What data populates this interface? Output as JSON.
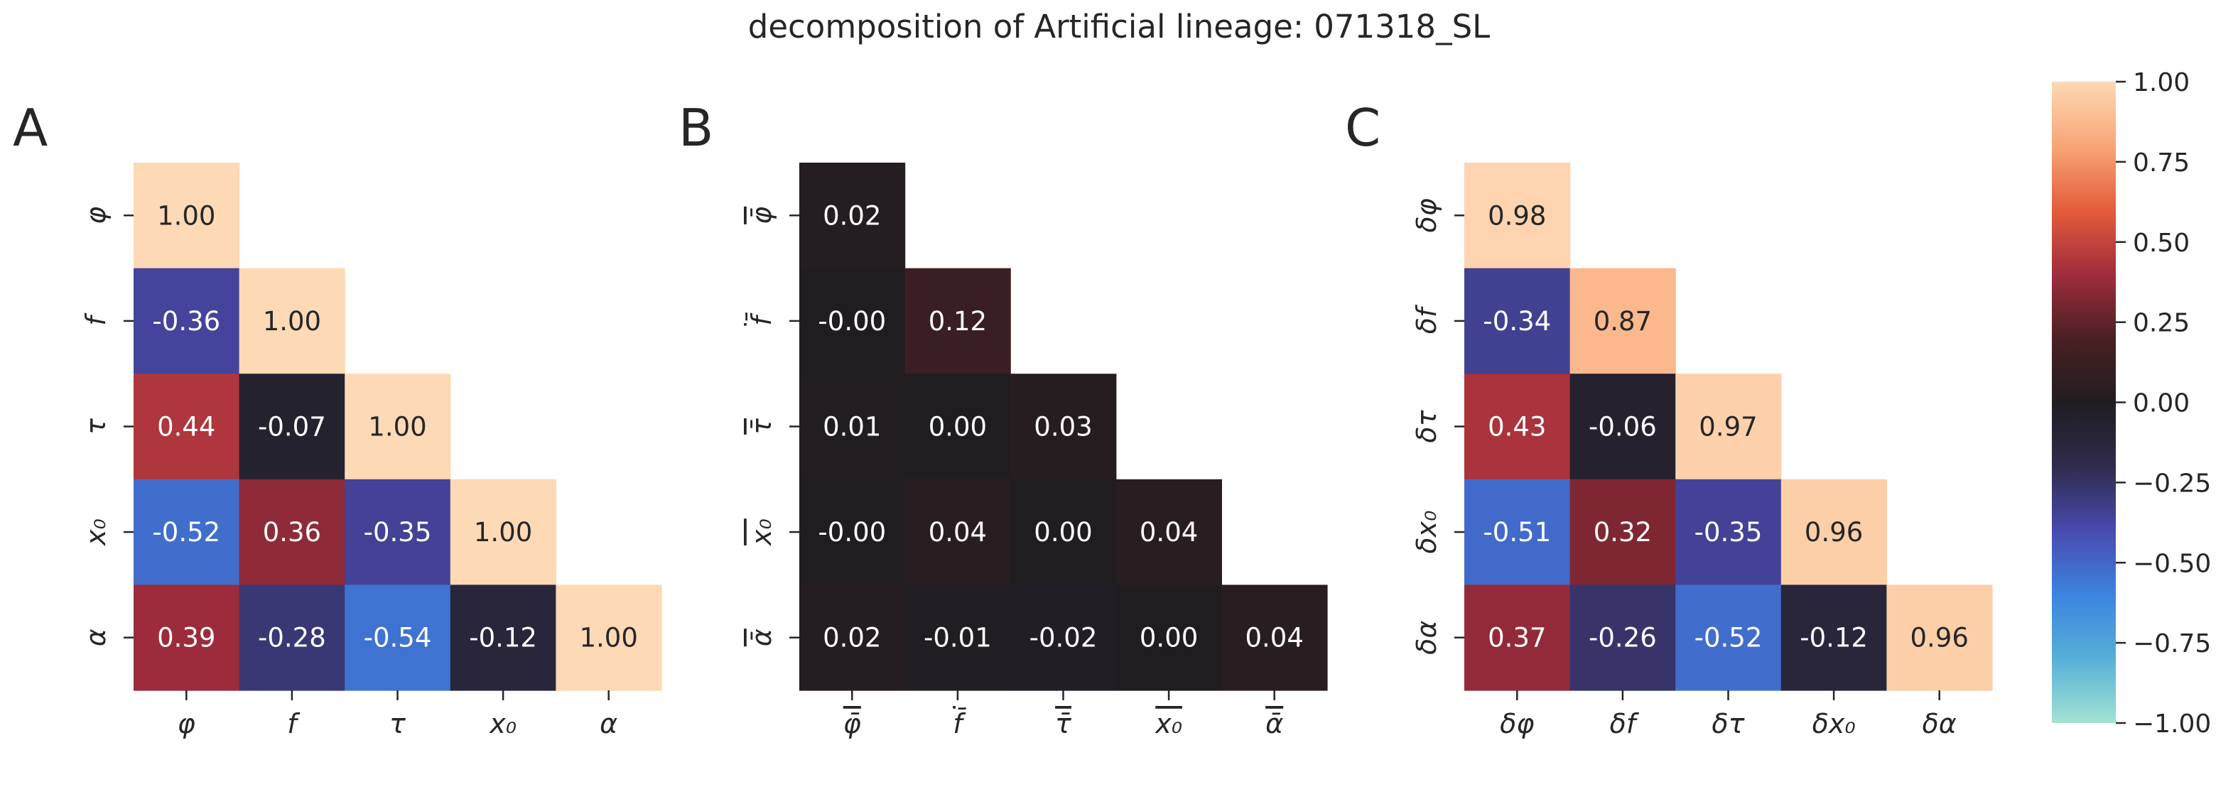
{
  "title": "decomposition of Artificial lineage: 071318_SL",
  "colors": {
    "colormap": [
      "#a3e3d2",
      "#56b0d7",
      "#3b84df",
      "#494ab0",
      "#2f2b4c",
      "#201d21",
      "#4a2023",
      "#a02c3d",
      "#e55d3a",
      "#f8a676",
      "#fdd9b5"
    ],
    "text_light": "#ffffff",
    "text_dark": "#262626"
  },
  "chart_data": [
    {
      "type": "heatmap",
      "panel": "A",
      "labels": [
        "φ",
        "f",
        "τ",
        "x0",
        "α"
      ],
      "label_display": [
        "φ",
        "f",
        "τ",
        "x₀",
        "α"
      ],
      "matrix": [
        [
          1.0,
          null,
          null,
          null,
          null
        ],
        [
          -0.36,
          1.0,
          null,
          null,
          null
        ],
        [
          0.44,
          -0.07,
          1.0,
          null,
          null
        ],
        [
          -0.52,
          0.36,
          -0.35,
          1.0,
          null
        ],
        [
          0.39,
          -0.28,
          -0.54,
          -0.12,
          1.0
        ]
      ],
      "cell_text": [
        [
          "1.00",
          "",
          "",
          "",
          ""
        ],
        [
          "-0.36",
          "1.00",
          "",
          "",
          ""
        ],
        [
          "0.44",
          "-0.07",
          "1.00",
          "",
          ""
        ],
        [
          "-0.52",
          "0.36",
          "-0.35",
          "1.00",
          ""
        ],
        [
          "0.39",
          "-0.28",
          "-0.54",
          "-0.12",
          "1.00"
        ]
      ],
      "xlabel": "",
      "ylabel": ""
    },
    {
      "type": "heatmap",
      "panel": "B",
      "labels": [
        "φ̄",
        "f̄",
        "τ̄",
        "x0 (overlined)",
        "ᾱ"
      ],
      "label_display": [
        "φ̄",
        "f̄",
        "τ̄",
        "x₀",
        "ᾱ"
      ],
      "overline_labels": true,
      "matrix": [
        [
          0.02,
          null,
          null,
          null,
          null
        ],
        [
          -0.0,
          0.12,
          null,
          null,
          null
        ],
        [
          0.01,
          0.0,
          0.03,
          null,
          null
        ],
        [
          -0.0,
          0.04,
          0.0,
          0.04,
          null
        ],
        [
          0.02,
          -0.01,
          -0.02,
          0.0,
          0.04
        ]
      ],
      "cell_text": [
        [
          "0.02",
          "",
          "",
          "",
          ""
        ],
        [
          "-0.00",
          "0.12",
          "",
          "",
          ""
        ],
        [
          "0.01",
          "0.00",
          "0.03",
          "",
          ""
        ],
        [
          "-0.00",
          "0.04",
          "0.00",
          "0.04",
          ""
        ],
        [
          "0.02",
          "-0.01",
          "-0.02",
          "0.00",
          "0.04"
        ]
      ],
      "xlabel": "",
      "ylabel": ""
    },
    {
      "type": "heatmap",
      "panel": "C",
      "labels": [
        "δφ",
        "δf",
        "δτ",
        "δx0",
        "δα"
      ],
      "label_display": [
        "δφ",
        "δf",
        "δτ",
        "δx₀",
        "δα"
      ],
      "matrix": [
        [
          0.98,
          null,
          null,
          null,
          null
        ],
        [
          -0.34,
          0.87,
          null,
          null,
          null
        ],
        [
          0.43,
          -0.06,
          0.97,
          null,
          null
        ],
        [
          -0.51,
          0.32,
          -0.35,
          0.96,
          null
        ],
        [
          0.37,
          -0.26,
          -0.52,
          -0.12,
          0.96
        ]
      ],
      "cell_text": [
        [
          "0.98",
          "",
          "",
          "",
          ""
        ],
        [
          "-0.34",
          "0.87",
          "",
          "",
          ""
        ],
        [
          "0.43",
          "-0.06",
          "0.97",
          "",
          ""
        ],
        [
          "-0.51",
          "0.32",
          "-0.35",
          "0.96",
          ""
        ],
        [
          "0.37",
          "-0.26",
          "-0.52",
          "-0.12",
          "0.96"
        ]
      ],
      "xlabel": "",
      "ylabel": ""
    }
  ],
  "colorbar": {
    "vmin": -1.0,
    "vmax": 1.0,
    "ticks": [
      1.0,
      0.75,
      0.5,
      0.25,
      0.0,
      -0.25,
      -0.5,
      -0.75,
      -1.0
    ],
    "tick_labels": [
      "1.00",
      "0.75",
      "0.50",
      "0.25",
      "0.00",
      "−0.25",
      "−0.50",
      "−0.75",
      "−1.00"
    ]
  }
}
